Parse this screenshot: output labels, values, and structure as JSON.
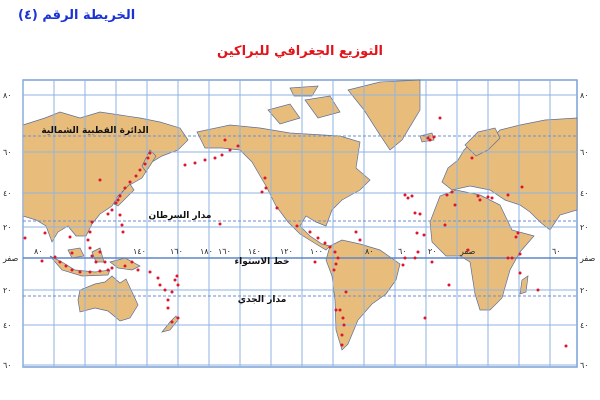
{
  "header": {
    "map_number": "الخريطة الرقم (٤)",
    "title": "التوزيع الجغرافي للبراكين"
  },
  "map": {
    "lines": {
      "arctic_circle": "الدائرة القطبية الشمالية",
      "tropic_cancer": "مدار السرطان",
      "equator": "خط الاستواء",
      "tropic_capricorn": "مدار الجدي"
    },
    "lat_labels_right": [
      "٨٠",
      "٦٠",
      "٤٠",
      "٢٠",
      "صفر",
      "٢٠",
      "٤٠",
      "٦٠"
    ],
    "lat_labels_left": [
      "٨٠",
      "٦٠",
      "٤٠",
      "٢٠",
      "صفر",
      "٢٠",
      "٤٠",
      "٦٠"
    ],
    "lon_labels": [
      "٨٠",
      "١٤٠",
      "١٦٠",
      "١٨٠",
      "١٦٠",
      "١٤٠",
      "١٢٠",
      "١٠٠",
      "٨٠",
      "٦٠",
      "٢٠",
      "صفر",
      "٦٠"
    ],
    "colors": {
      "land": "#e8bd7c",
      "grid": "#8fb3e0",
      "volcano": "#e0142a",
      "water": "#ffffff"
    },
    "legend_symbol": "volcano-dot"
  }
}
